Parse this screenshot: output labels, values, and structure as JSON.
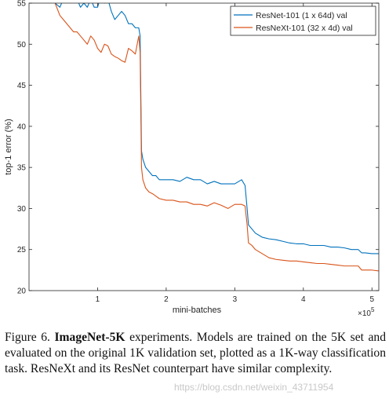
{
  "chart_data": {
    "type": "line",
    "xlabel": "mini-batches",
    "ylabel": "top-1 error (%)",
    "x_multiplier_label": "×10",
    "x_multiplier_exp": "5",
    "xlim": [
      0.0,
      5.1
    ],
    "ylim": [
      20,
      55
    ],
    "xticks": [
      1,
      2,
      3,
      4,
      5
    ],
    "yticks": [
      20,
      25,
      30,
      35,
      40,
      45,
      50,
      55
    ],
    "grid": false,
    "legend_position": "top-right",
    "series": [
      {
        "name": "ResNet-101 (1 x 64d) val",
        "color": "#0072BD",
        "x": [
          0.38,
          0.45,
          0.5,
          0.55,
          0.6,
          0.65,
          0.7,
          0.75,
          0.8,
          0.85,
          0.9,
          0.95,
          1.0,
          1.05,
          1.1,
          1.15,
          1.2,
          1.25,
          1.3,
          1.35,
          1.4,
          1.45,
          1.5,
          1.55,
          1.6,
          1.62,
          1.64,
          1.66,
          1.7,
          1.75,
          1.8,
          1.85,
          1.9,
          2.0,
          2.1,
          2.2,
          2.3,
          2.4,
          2.5,
          2.6,
          2.7,
          2.8,
          2.9,
          3.0,
          3.1,
          3.15,
          3.18,
          3.2,
          3.25,
          3.3,
          3.4,
          3.5,
          3.6,
          3.7,
          3.8,
          3.9,
          4.0,
          4.1,
          4.2,
          4.3,
          4.4,
          4.5,
          4.6,
          4.7,
          4.8,
          4.85,
          4.9,
          5.0,
          5.1
        ],
        "y": [
          55,
          54.5,
          55.5,
          56,
          55.5,
          55.5,
          55.5,
          54.5,
          55,
          54.5,
          55.5,
          54.5,
          54.5,
          56,
          55,
          55.5,
          54,
          53,
          53.5,
          54,
          53.5,
          52.5,
          52.5,
          52,
          52,
          51,
          37,
          36,
          35,
          34.5,
          34,
          34,
          33.5,
          33.5,
          33.5,
          33.3,
          33.8,
          33.5,
          33.5,
          33,
          33.3,
          33,
          33,
          33,
          33.5,
          32.8,
          30,
          28,
          27.5,
          27,
          26.5,
          26.3,
          26.2,
          26,
          25.8,
          25.7,
          25.7,
          25.5,
          25.5,
          25.5,
          25.3,
          25.3,
          25.2,
          25,
          25,
          24.6,
          24.6,
          24.5,
          24.5
        ]
      },
      {
        "name": "ResNeXt-101 (32 x 4d) val",
        "color": "#D95319",
        "x": [
          0.38,
          0.45,
          0.5,
          0.55,
          0.6,
          0.65,
          0.7,
          0.75,
          0.8,
          0.85,
          0.9,
          0.95,
          1.0,
          1.05,
          1.1,
          1.15,
          1.2,
          1.25,
          1.3,
          1.35,
          1.4,
          1.45,
          1.5,
          1.55,
          1.6,
          1.62,
          1.64,
          1.66,
          1.7,
          1.75,
          1.8,
          1.85,
          1.9,
          2.0,
          2.1,
          2.2,
          2.3,
          2.4,
          2.5,
          2.6,
          2.7,
          2.8,
          2.9,
          3.0,
          3.1,
          3.15,
          3.18,
          3.2,
          3.25,
          3.3,
          3.4,
          3.5,
          3.6,
          3.7,
          3.8,
          3.9,
          4.0,
          4.1,
          4.2,
          4.3,
          4.4,
          4.5,
          4.6,
          4.7,
          4.8,
          4.85,
          4.9,
          5.0,
          5.1
        ],
        "y": [
          55,
          53.5,
          53,
          52.5,
          52,
          51.5,
          51.5,
          51,
          50.5,
          50,
          51,
          50.5,
          49.5,
          49,
          50,
          49.8,
          48.8,
          48.5,
          48.3,
          48,
          47.8,
          49.5,
          49.2,
          48.8,
          51,
          49,
          35,
          33.5,
          32.5,
          32,
          31.8,
          31.5,
          31.2,
          31,
          31,
          30.8,
          30.8,
          30.5,
          30.5,
          30.3,
          30.7,
          30.4,
          30,
          30.5,
          30.5,
          30.3,
          28,
          25.8,
          25.5,
          25,
          24.5,
          24,
          23.8,
          23.7,
          23.6,
          23.6,
          23.5,
          23.4,
          23.3,
          23.3,
          23.2,
          23.1,
          23,
          23,
          23,
          22.5,
          22.5,
          22.5,
          22.4
        ]
      }
    ]
  },
  "caption": {
    "label": "Figure 6.",
    "bold": "ImageNet-5K",
    "text": "experiments. Models are trained on the 5K set and evaluated on the original 1K validation set, plotted as a 1K-way classification task. ResNeXt and its ResNet counterpart have similar complexity."
  },
  "watermark": "https://blog.csdn.net/weixin_43711954"
}
